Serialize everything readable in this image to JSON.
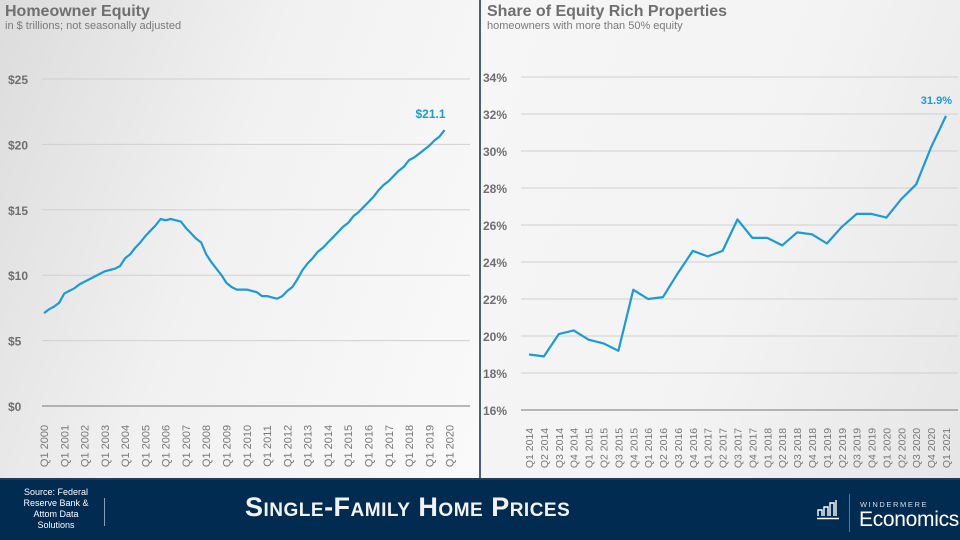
{
  "footer": {
    "source": "Source: Federal Reserve Bank & Attom Data Solutions",
    "banner_title": "Single-Family Home Prices",
    "logo_top": "WINDERMERE",
    "logo_main": "Economics",
    "logo_icon": "bar-chart-icon"
  },
  "colors": {
    "line": "#1a9bd7",
    "annotation": "#1a9bd7",
    "banner": "#022b52",
    "grid": "#d0d0d0",
    "axis_text": "#6f6f6f"
  },
  "chart_data": [
    {
      "type": "line",
      "title": "Homeowner Equity",
      "subtitle": "in $ trillions; not seasonally adjusted",
      "xlabel": "",
      "ylabel": "",
      "ylim": [
        0,
        25
      ],
      "y_ticks": [
        0,
        5,
        10,
        15,
        20,
        25
      ],
      "y_tick_labels": [
        "$0",
        "$5",
        "$10",
        "$15",
        "$20",
        "$25"
      ],
      "grid": true,
      "x_tick_labels": [
        "Q1 2000",
        "Q1 2001",
        "Q1 2002",
        "Q1 2003",
        "Q1 2004",
        "Q1 2005",
        "Q1 2006",
        "Q1 2007",
        "Q1 2008",
        "Q1 2009",
        "Q1 2010",
        "Q1 2011",
        "Q1 2012",
        "Q1 2013",
        "Q1 2014",
        "Q1 2015",
        "Q1 2016",
        "Q1 2017",
        "Q1 2018",
        "Q1 2019",
        "Q1 2020"
      ],
      "x_start": "Q1 2000",
      "x_frequency": "quarterly",
      "annotation": "$21.1",
      "series": [
        {
          "name": "Homeowner Equity",
          "values": [
            7.1,
            7.4,
            7.6,
            7.9,
            8.6,
            8.8,
            9.0,
            9.3,
            9.5,
            9.7,
            9.9,
            10.1,
            10.3,
            10.4,
            10.5,
            10.7,
            11.3,
            11.6,
            12.1,
            12.5,
            13.0,
            13.4,
            13.8,
            14.3,
            14.2,
            14.3,
            14.2,
            14.1,
            13.6,
            13.2,
            12.8,
            12.5,
            11.6,
            11.0,
            10.5,
            10.0,
            9.4,
            9.1,
            8.9,
            8.9,
            8.9,
            8.8,
            8.7,
            8.4,
            8.4,
            8.3,
            8.2,
            8.4,
            8.8,
            9.1,
            9.7,
            10.4,
            10.9,
            11.3,
            11.8,
            12.1,
            12.5,
            12.9,
            13.3,
            13.7,
            14.0,
            14.5,
            14.8,
            15.2,
            15.6,
            16.0,
            16.5,
            16.9,
            17.2,
            17.6,
            18.0,
            18.3,
            18.8,
            19.0,
            19.3,
            19.6,
            19.9,
            20.3,
            20.6,
            21.1
          ]
        }
      ]
    },
    {
      "type": "line",
      "title": "Share of Equity Rich Properties",
      "subtitle": "homeowners with more than 50% equity",
      "xlabel": "",
      "ylabel": "",
      "ylim": [
        16,
        34
      ],
      "y_ticks": [
        16,
        18,
        20,
        22,
        24,
        26,
        28,
        30,
        32,
        34
      ],
      "y_tick_labels": [
        "16%",
        "18%",
        "20%",
        "22%",
        "24%",
        "26%",
        "28%",
        "30%",
        "32%",
        "34%"
      ],
      "grid": true,
      "categories": [
        "Q1 2014",
        "Q2 2014",
        "Q3 2014",
        "Q4 2014",
        "Q1 2015",
        "Q2 2015",
        "Q3 2015",
        "Q4 2015",
        "Q1 2016",
        "Q2 2016",
        "Q3 2016",
        "Q4 2016",
        "Q1 2017",
        "Q2 2017",
        "Q3 2017",
        "Q4 2017",
        "Q1 2018",
        "Q2 2018",
        "Q3 2018",
        "Q4 2018",
        "Q1 2019",
        "Q2 2019",
        "Q3 2019",
        "Q4 2019",
        "Q1 2020",
        "Q2 2020",
        "Q3 2020",
        "Q4 2020",
        "Q1 2021"
      ],
      "annotation": "31.9%",
      "series": [
        {
          "name": "Share of Equity Rich Properties",
          "values": [
            19.0,
            18.9,
            20.1,
            20.3,
            19.8,
            19.6,
            19.2,
            22.5,
            22.0,
            22.1,
            23.4,
            24.6,
            24.3,
            24.6,
            26.3,
            25.3,
            25.3,
            24.9,
            25.6,
            25.5,
            25.0,
            25.9,
            26.6,
            26.6,
            26.4,
            27.4,
            28.2,
            30.2,
            31.9
          ]
        }
      ]
    }
  ]
}
